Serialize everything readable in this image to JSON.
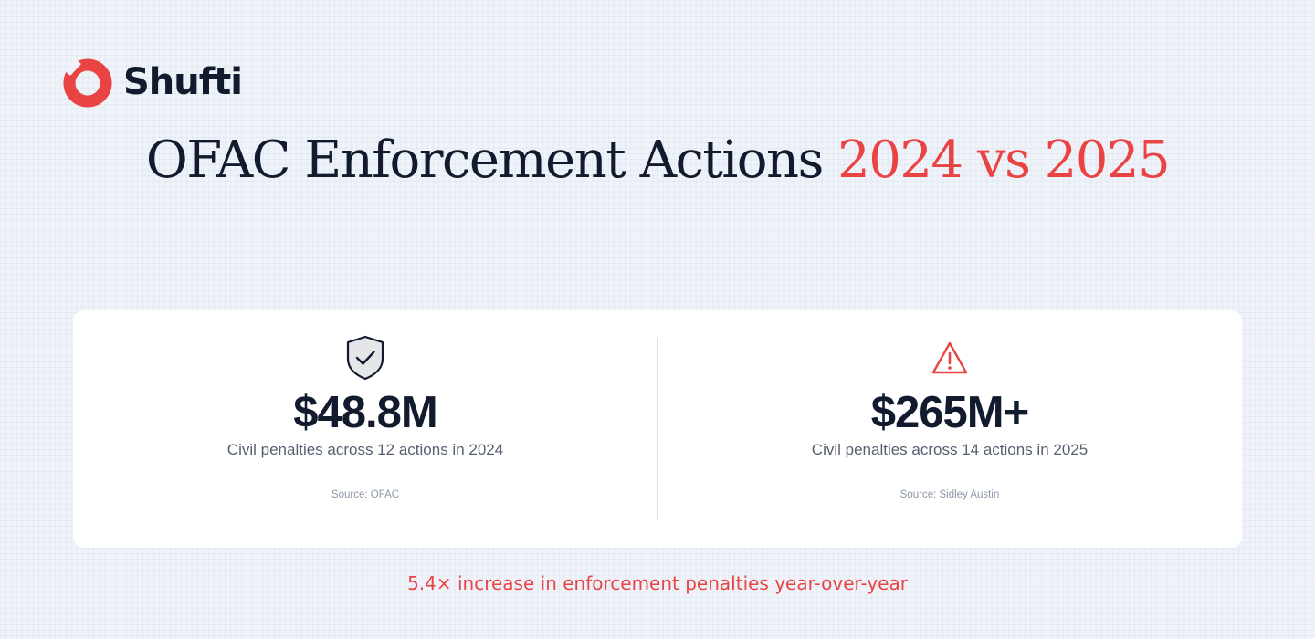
{
  "brand": {
    "name": "Shufti",
    "accent_color": "#ea4343",
    "text_color": "#121a2e"
  },
  "title": {
    "main": "OFAC Enforcement Actions",
    "accent": "2024 vs 2025"
  },
  "stats": [
    {
      "icon": "shield-check-icon",
      "value": "$48.8M",
      "description": "Civil penalties across 12 actions in 2024",
      "source": "Source: OFAC"
    },
    {
      "icon": "warning-triangle-icon",
      "value": "$265M+",
      "description": "Civil penalties across 14 actions in 2025",
      "source": "Source: Sidley Austin"
    }
  ],
  "footer": {
    "text": "5.4× increase in enforcement penalties year-over-year"
  }
}
